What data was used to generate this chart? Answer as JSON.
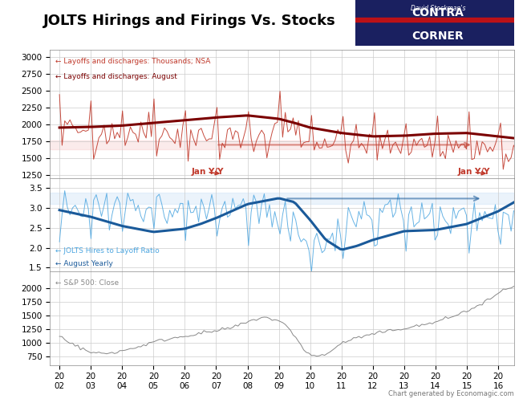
{
  "title": "JOLTS Hirings and Firings Vs. Stocks",
  "title_fontsize": 13,
  "background_color": "#ffffff",
  "grid_color": "#cccccc",
  "layoffs_nsa_color": "#c0392b",
  "layoffs_august_color": "#7b0000",
  "layoffs_nsa_lw": 0.7,
  "layoffs_august_lw": 2.2,
  "layoffs_ylim": [
    1200,
    3100
  ],
  "layoffs_yticks": [
    1250,
    1500,
    1750,
    2000,
    2250,
    2500,
    2750,
    3000
  ],
  "ratio_color": "#4da6e0",
  "ratio_august_color": "#1a5a9a",
  "ratio_lw": 0.7,
  "ratio_august_lw": 2.2,
  "ratio_ylim": [
    1.4,
    3.75
  ],
  "ratio_yticks": [
    1.5,
    2.0,
    2.5,
    3.0,
    3.5
  ],
  "sp500_color": "#888888",
  "sp500_lw": 0.7,
  "sp500_ylim": [
    600,
    2300
  ],
  "sp500_yticks": [
    750,
    1000,
    1250,
    1500,
    1750,
    2000
  ],
  "annotation_color": "#c0392b",
  "band_color_red": "#f5c6c6",
  "band_color_blue": "#c6ddf5",
  "watermark": "Chart generated by Economagic.com"
}
